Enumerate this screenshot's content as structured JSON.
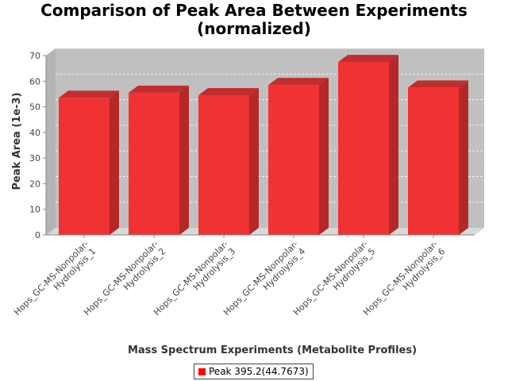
{
  "chart_data": {
    "type": "bar",
    "title": [
      "Comparison of Peak Area Between Experiments",
      "(normalized)"
    ],
    "xlabel": "Mass Spectrum Experiments (Metabolite Profiles)",
    "ylabel": "Peak Area (1e-3)",
    "ylim": [
      0,
      70
    ],
    "yticks": [
      0,
      10,
      20,
      30,
      40,
      50,
      60,
      70
    ],
    "categories": [
      [
        "Hops_GC-MS-Nonpolar-",
        "Hydrolysis_1"
      ],
      [
        "Hops_GC-MS-Nonpolar-",
        "Hydrolysis_2"
      ],
      [
        "Hops_GC-MS-Nonpolar-",
        "Hydrolysis_3"
      ],
      [
        "Hops_GC-MS-Nonpolar-",
        "Hydrolysis_4"
      ],
      [
        "Hops_GC-MS-Nonpolar-",
        "Hydrolysis_5"
      ],
      [
        "Hops_GC-MS-Nonpolar-",
        "Hydrolysis_6"
      ]
    ],
    "series": [
      {
        "name": "Peak 395.2(44.7673)",
        "values": [
          53.5,
          55.5,
          54.5,
          58.5,
          67.5,
          57.5
        ]
      }
    ],
    "colors": {
      "bar": "#ff0000",
      "plot_background": "#c0c0c0"
    },
    "grid": true,
    "legend_position": "bottom"
  }
}
